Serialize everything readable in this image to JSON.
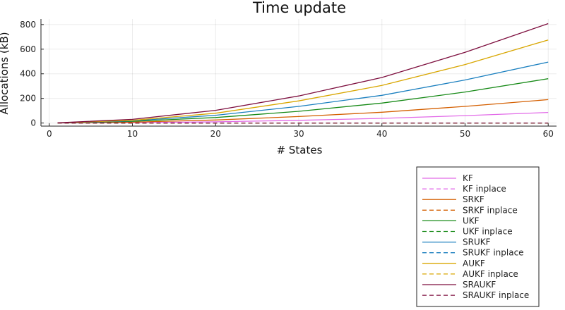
{
  "chart_data": {
    "type": "line",
    "title": "Time update",
    "xlabel": "# States",
    "ylabel": "Allocations (kB)",
    "xlim": [
      0,
      60
    ],
    "ylim": [
      0,
      800
    ],
    "xticks": [
      "0",
      "10",
      "20",
      "30",
      "40",
      "50",
      "60"
    ],
    "yticks": [
      "0",
      "200",
      "400",
      "600",
      "800"
    ],
    "grid": true,
    "legend_position": "bottom-right",
    "x": [
      1,
      10,
      20,
      30,
      40,
      50,
      60
    ],
    "series": [
      {
        "name": "KF",
        "color": "#e26ae8",
        "style": "solid",
        "values": [
          0.3,
          3,
          10,
          22,
          38,
          60,
          86
        ]
      },
      {
        "name": "KF inplace",
        "color": "#e26ae8",
        "style": "dashed",
        "values": [
          0,
          0,
          0,
          0,
          0,
          0,
          0
        ]
      },
      {
        "name": "SRKF",
        "color": "#d45f00",
        "style": "solid",
        "values": [
          0.5,
          7,
          25,
          53,
          88,
          135,
          190
        ]
      },
      {
        "name": "SRKF inplace",
        "color": "#d45f00",
        "style": "dashed",
        "values": [
          0,
          0,
          0,
          0,
          0,
          0,
          0
        ]
      },
      {
        "name": "UKF",
        "color": "#178a17",
        "style": "solid",
        "values": [
          1,
          14,
          45,
          95,
          162,
          252,
          360
        ]
      },
      {
        "name": "UKF inplace",
        "color": "#178a17",
        "style": "dashed",
        "values": [
          0,
          0,
          0,
          0,
          0,
          0,
          0
        ]
      },
      {
        "name": "SRUKF",
        "color": "#1a7fbf",
        "style": "solid",
        "values": [
          1,
          18,
          63,
          135,
          225,
          350,
          495
        ]
      },
      {
        "name": "SRUKF inplace",
        "color": "#1a7fbf",
        "style": "dashed",
        "values": [
          0,
          0,
          0,
          0,
          0,
          0,
          0
        ]
      },
      {
        "name": "AUKF",
        "color": "#d8a600",
        "style": "solid",
        "values": [
          1.5,
          22,
          80,
          180,
          305,
          475,
          675
        ]
      },
      {
        "name": "AUKF inplace",
        "color": "#d8a600",
        "style": "dashed",
        "values": [
          0,
          0,
          0,
          0,
          0,
          0,
          0
        ]
      },
      {
        "name": "SRAUKF",
        "color": "#7d0e3e",
        "style": "solid",
        "values": [
          2,
          30,
          103,
          220,
          370,
          575,
          808
        ]
      },
      {
        "name": "SRAUKF inplace",
        "color": "#7d0e3e",
        "style": "dashed",
        "values": [
          0,
          0,
          0,
          0,
          0,
          0,
          0
        ]
      }
    ]
  }
}
